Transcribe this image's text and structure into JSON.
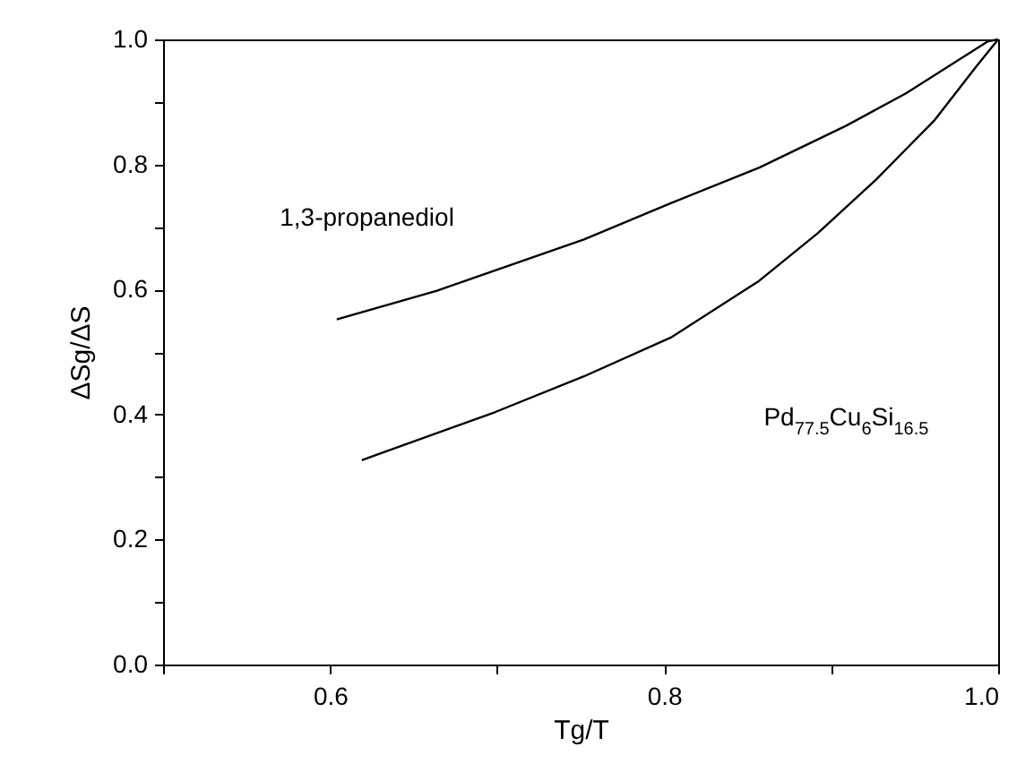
{
  "chart_data": {
    "type": "line",
    "xlabel": "Tg/T",
    "ylabel": "ΔSg/ΔS",
    "xlim": [
      0.5,
      1.0
    ],
    "ylim": [
      0.0,
      1.0
    ],
    "xticks": [
      {
        "value": 0.5,
        "label": null
      },
      0.6,
      {
        "value": 0.7,
        "label": null
      },
      0.8,
      {
        "value": 0.9,
        "label": null
      },
      {
        "value": 1.0,
        "label": "1.0"
      }
    ],
    "yticks": [
      {
        "value": 0.0,
        "label": "0.0"
      },
      {
        "value": 0.1,
        "label": null
      },
      0.2,
      {
        "value": 0.3,
        "label": null
      },
      0.4,
      {
        "value": 0.5,
        "label": null
      },
      0.6,
      {
        "value": 0.7,
        "label": null
      },
      0.8,
      {
        "value": 0.9,
        "label": null
      },
      {
        "value": 1.0,
        "label": "1.0"
      }
    ],
    "grid": false,
    "legend": false,
    "marker": "none",
    "line_style": "solid",
    "series": [
      {
        "color": "#000000",
        "x": [
          0.604,
          0.664,
          0.752,
          0.804,
          0.857,
          0.909,
          0.945,
          0.994,
          1.0
        ],
        "values": [
          0.552,
          0.598,
          0.68,
          0.738,
          0.795,
          0.862,
          0.914,
          0.997,
          1.0
        ]
      },
      {
        "color": "#000000",
        "x": [
          0.619,
          0.699,
          0.752,
          0.804,
          0.857,
          0.892,
          0.927,
          0.962,
          0.987,
          1.0
        ],
        "values": [
          0.327,
          0.404,
          0.461,
          0.523,
          0.614,
          0.69,
          0.776,
          0.871,
          0.957,
          1.0
        ]
      }
    ],
    "annotations": [
      "1,3-propanediol",
      "Pd$_{77.5}$Cu$_{6}$Si$_{16.5}$"
    ]
  }
}
